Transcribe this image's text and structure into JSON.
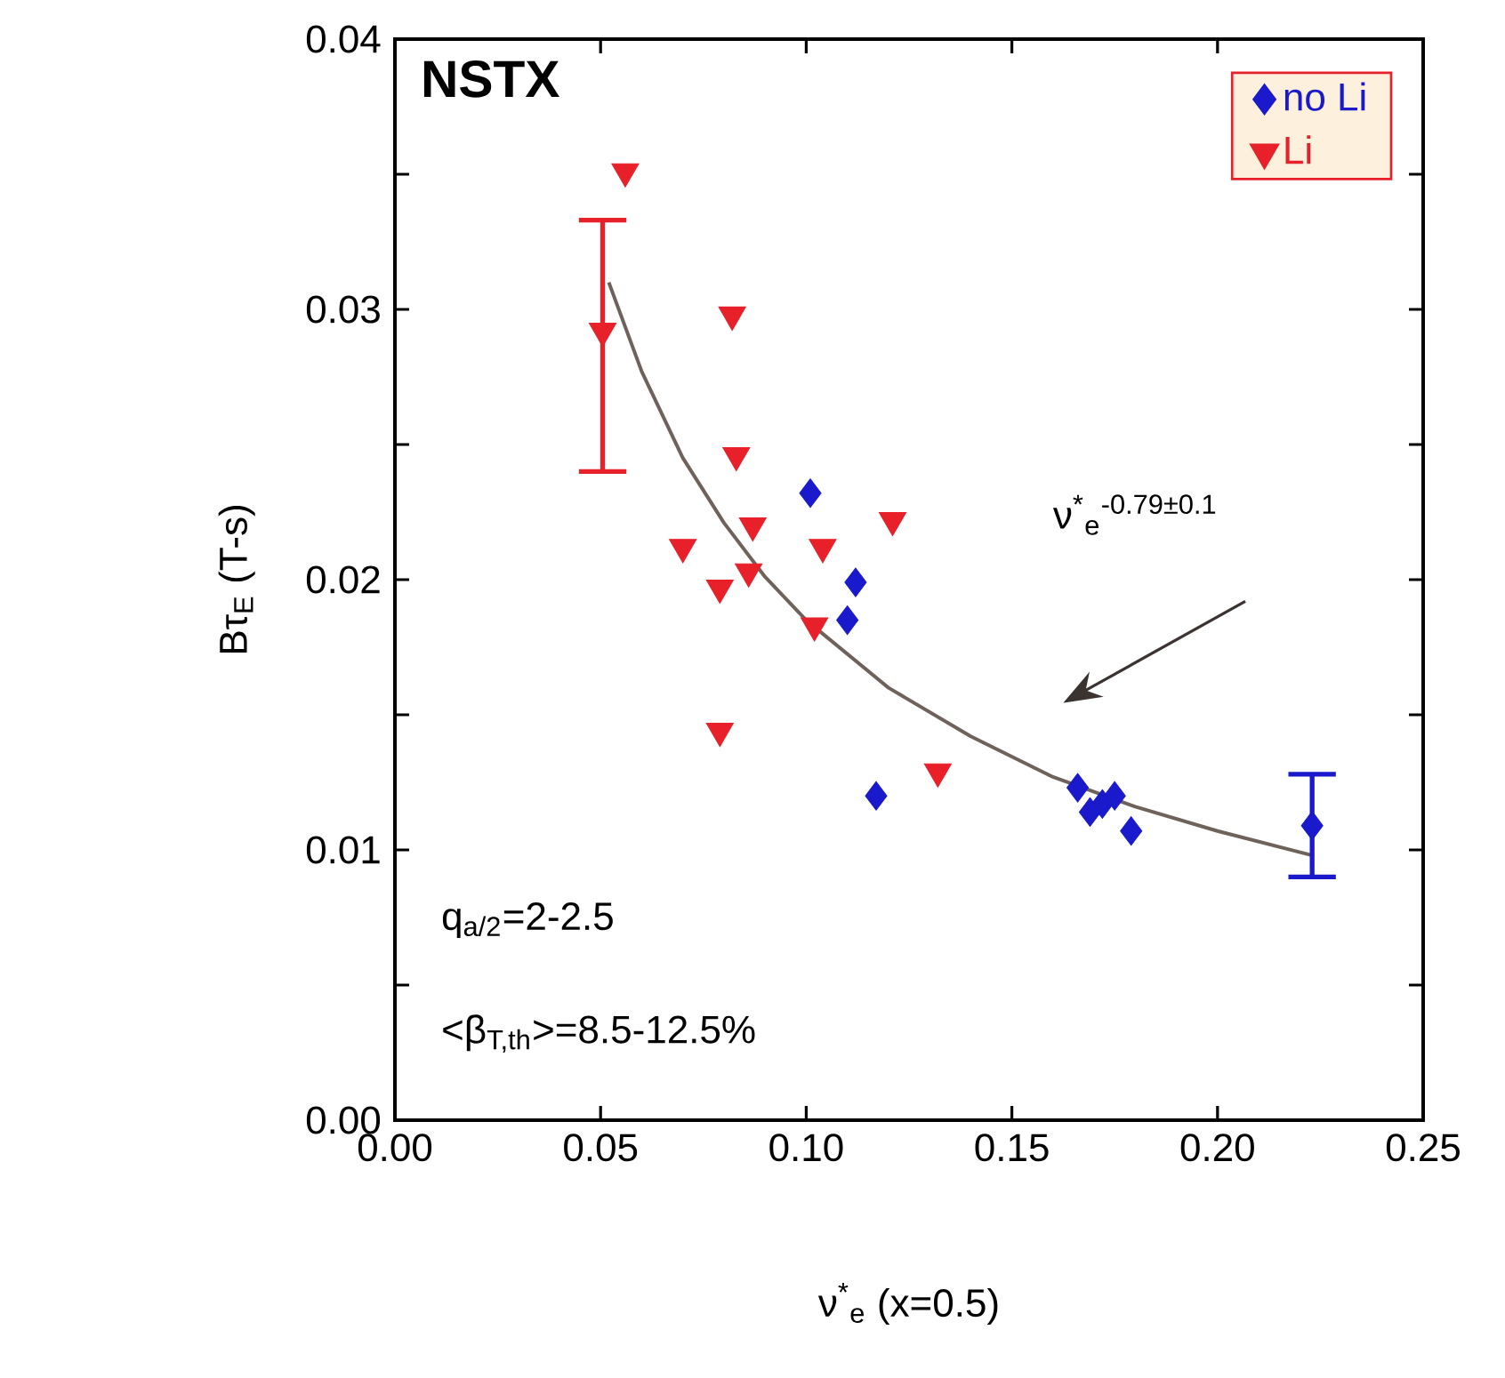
{
  "chart_data": {
    "type": "scatter",
    "xlabel": "ν$^{*}$$_{e}$ (x=0.5)",
    "ylabel": "Bτ$_{E}$ (T-s)",
    "xlim": [
      0,
      0.25
    ],
    "ylim": [
      0,
      0.04
    ],
    "xticks": [
      {
        "value": 0,
        "label": "0.00"
      },
      {
        "value": 0.05,
        "label": "0.05"
      },
      {
        "value": 0.1,
        "label": "0.10"
      },
      {
        "value": 0.15,
        "label": "0.15"
      },
      {
        "value": 0.2,
        "label": "0.20"
      },
      {
        "value": 0.25,
        "label": "0.25"
      }
    ],
    "yticks": [
      {
        "value": 0,
        "label": "0.00"
      },
      {
        "value": 0.01,
        "label": "0.01"
      },
      {
        "value": 0.02,
        "label": "0.02"
      },
      {
        "value": 0.03,
        "label": "0.03"
      },
      {
        "value": 0.04,
        "label": "0.04"
      }
    ],
    "legend": "top right",
    "series": [
      {
        "name": "no Li",
        "marker": "diamond",
        "color": "#1a1acc",
        "x": [
          0.101,
          0.112,
          0.11,
          0.117,
          0.166,
          0.169,
          0.172,
          0.175,
          0.179,
          0.223
        ],
        "values": [
          0.0232,
          0.0199,
          0.0185,
          0.012,
          0.0123,
          0.0114,
          0.0117,
          0.012,
          0.0107,
          0.0109
        ],
        "errors": [
          null,
          null,
          null,
          null,
          null,
          null,
          null,
          null,
          null,
          [
            0.009,
            0.0128
          ]
        ]
      },
      {
        "name": "Li",
        "marker": "triangle",
        "color": "#e8202a",
        "x": [
          0.056,
          0.0505,
          0.082,
          0.083,
          0.087,
          0.07,
          0.104,
          0.121,
          0.079,
          0.086,
          0.102,
          0.079,
          0.132
        ],
        "values": [
          0.0351,
          0.0292,
          0.0298,
          0.0246,
          0.022,
          0.0212,
          0.0212,
          0.0222,
          0.0197,
          0.0203,
          0.0183,
          0.0144,
          0.0129
        ],
        "errors": [
          null,
          [
            0.024,
            0.0333
          ],
          null,
          null,
          null,
          null,
          null,
          null,
          null,
          null,
          null,
          null,
          null
        ]
      },
      {
        "type": "line",
        "marker": "none",
        "color": "#6e625a",
        "x": [
          0.052,
          0.06,
          0.07,
          0.08,
          0.09,
          0.1,
          0.12,
          0.14,
          0.16,
          0.18,
          0.2,
          0.223
        ],
        "values": [
          0.031,
          0.0277,
          0.0245,
          0.0221,
          0.0201,
          0.0185,
          0.016,
          0.0142,
          0.0127,
          0.0116,
          0.0107,
          0.0098
        ]
      }
    ],
    "annotations": [
      "NSTX",
      "ν$^{*}$$_{e}$$^{-0.79±0.1}$",
      "q$_{a/2}$=2-2.5",
      "<β$_{T,th}$>=8.5-12.5%"
    ]
  }
}
